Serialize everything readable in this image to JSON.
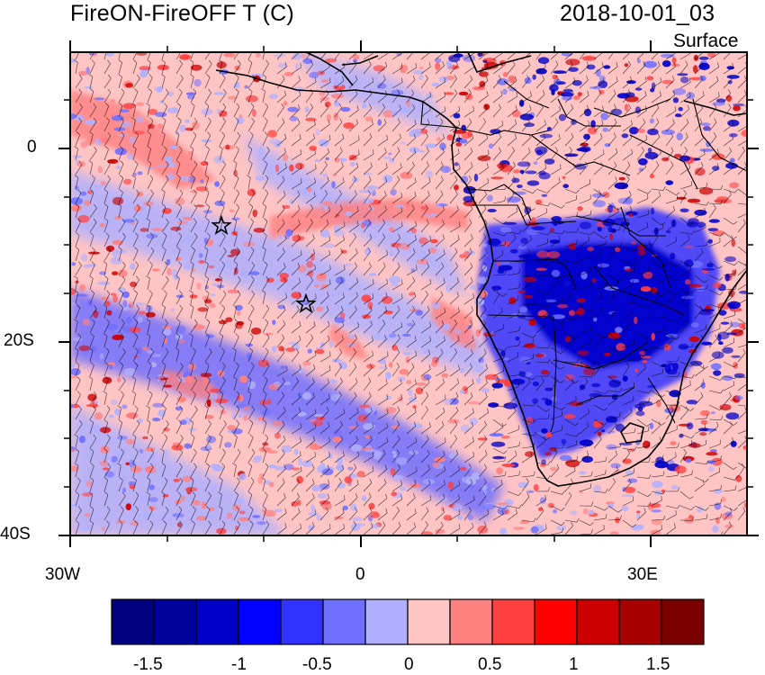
{
  "title": "FireON-FireOFF T (C)",
  "datetime": "2018-10-01_03",
  "level": "Surface",
  "map": {
    "projection": "cylindrical equidistant",
    "lon_range": [
      -30,
      40
    ],
    "lat_range": [
      -40,
      10
    ],
    "x_ticks": [
      "30W",
      "0",
      "30E"
    ],
    "y_ticks": [
      "0",
      "20S",
      "40S"
    ],
    "markers": [
      "star-marker-1",
      "star-marker-2"
    ],
    "overlay": "wind barbs"
  },
  "colorbar": {
    "colors": [
      "#000080",
      "#00009c",
      "#0000c9",
      "#0000ff",
      "#3232ff",
      "#7070ff",
      "#b0b0ff",
      "#ffc4c4",
      "#ff8080",
      "#ff4040",
      "#ff0000",
      "#cc0000",
      "#a60000",
      "#7a0000"
    ],
    "labels": [
      "-1.5",
      "-1",
      "-0.5",
      "0",
      "0.5",
      "1",
      "1.5"
    ]
  },
  "field_colors": {
    "base": "#ffc4c4",
    "light_blue": "#b0b0ff",
    "mid_blue": "#7070ff",
    "deep_blue": "#0000c9",
    "light_red": "#ff8080",
    "mid_red": "#ff4040",
    "deep_red": "#cc0000"
  }
}
